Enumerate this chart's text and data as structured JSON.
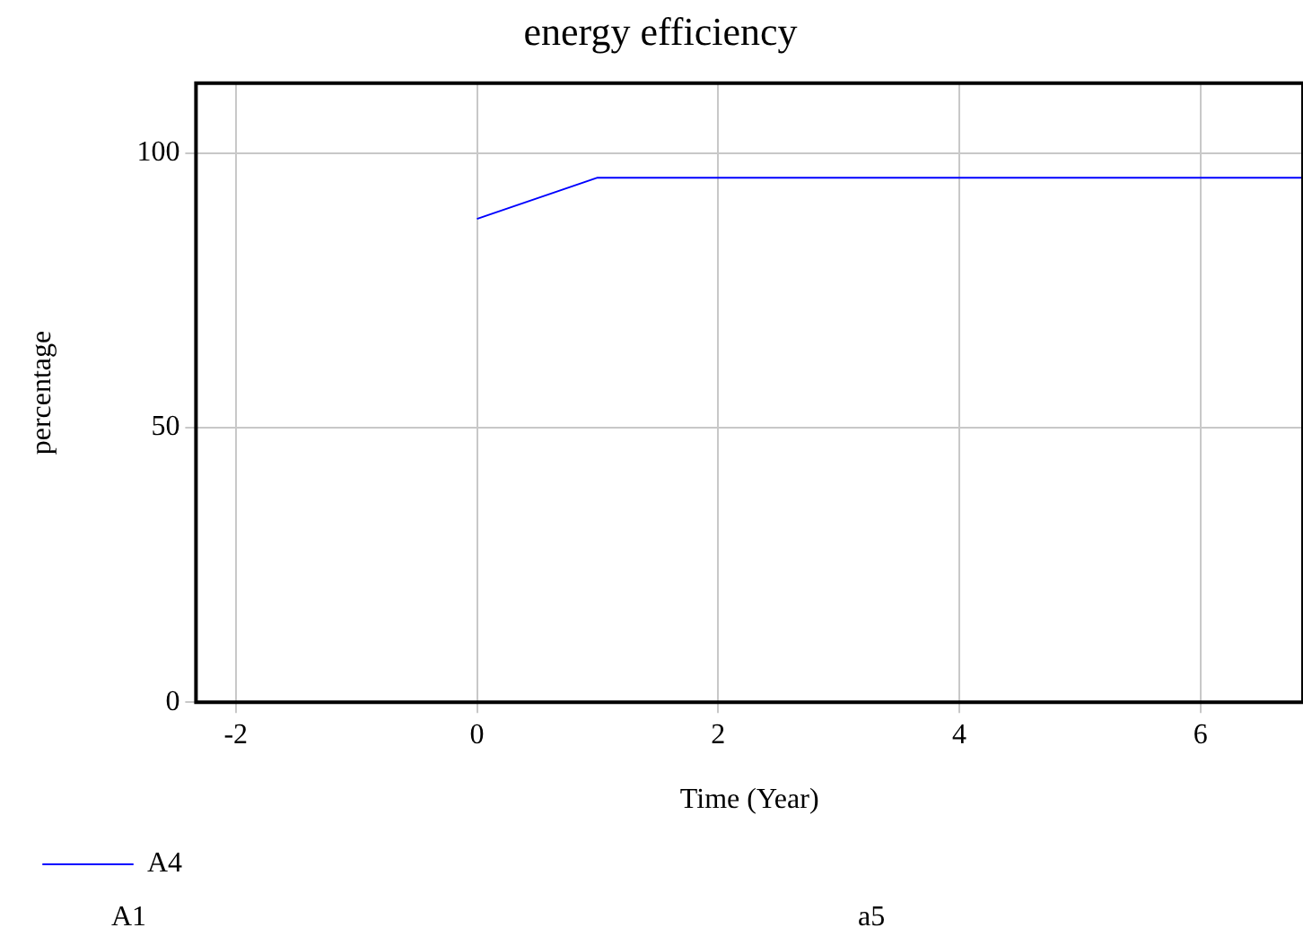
{
  "chart_data": {
    "type": "line",
    "title": "energy efficiency",
    "xlabel": "Time (Year)",
    "ylabel": "percentage",
    "series": [
      {
        "name": "A4",
        "color": "#0000ff",
        "x": [
          0,
          1,
          6.85
        ],
        "values": [
          88,
          95.5,
          95.5
        ]
      }
    ],
    "xlim": [
      -2.33,
      6.85
    ],
    "xticks": [
      -2,
      0,
      2,
      4,
      6
    ],
    "ylim": [
      0,
      112.7
    ],
    "yticks": [
      0,
      50,
      100
    ],
    "grid": true,
    "legend": "bottom left",
    "marker": "none",
    "line_style": "solid",
    "annotations": [
      "A1",
      "a5"
    ]
  }
}
